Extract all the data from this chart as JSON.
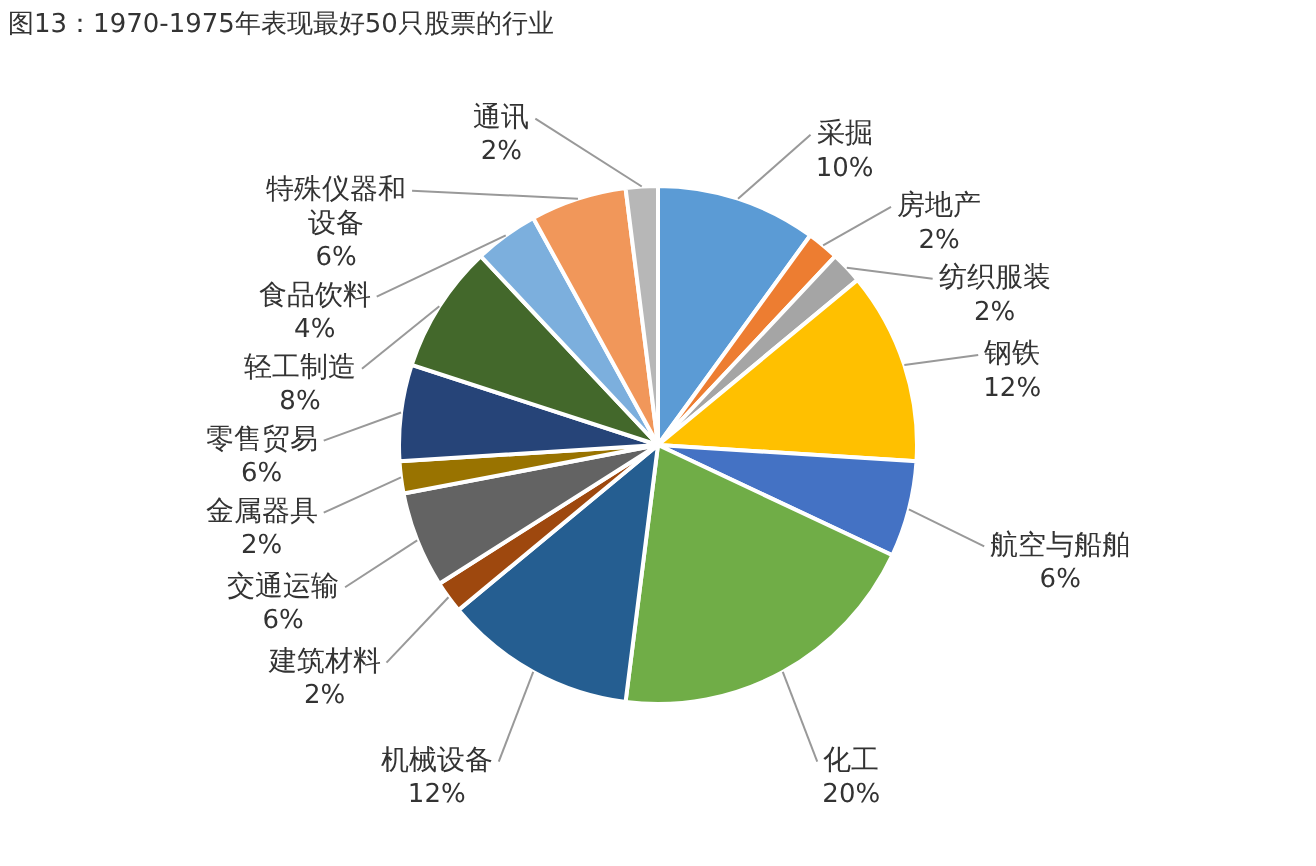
{
  "chart_data": {
    "type": "pie",
    "title": "图13：1970-1975年表现最好50只股票的行业",
    "categories": [
      "采掘",
      "房地产",
      "纺织服装",
      "钢铁",
      "航空与船舶",
      "化工",
      "机械设备",
      "建筑材料",
      "交通运输",
      "金属器具",
      "零售贸易",
      "轻工制造",
      "食品饮料",
      "特殊仪器和设备",
      "通讯"
    ],
    "values": [
      10,
      2,
      2,
      12,
      6,
      20,
      12,
      2,
      6,
      2,
      6,
      8,
      4,
      6,
      2
    ],
    "value_labels": [
      "10%",
      "2%",
      "2%",
      "12%",
      "6%",
      "20%",
      "12%",
      "2%",
      "6%",
      "2%",
      "6%",
      "8%",
      "4%",
      "6%",
      "2%"
    ],
    "colors": [
      "#5b9bd5",
      "#ed7d31",
      "#a5a5a5",
      "#ffc000",
      "#4472c4",
      "#70ad47",
      "#255e91",
      "#9e480e",
      "#636363",
      "#997300",
      "#264478",
      "#43682b",
      "#7cafdd",
      "#f1975a",
      "#b7b7b7"
    ],
    "legend": false
  }
}
